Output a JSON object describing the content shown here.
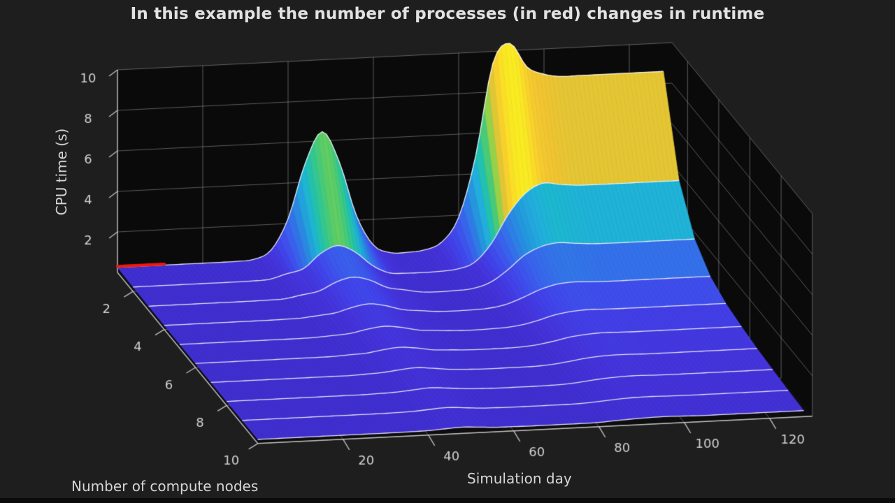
{
  "title": "In this example the number of processes (in red) changes in runtime",
  "colors": {
    "background": "#1e1e1e",
    "wall": "#0a0a0a",
    "floor": "#0d0d0d",
    "grid": "rgba(172,172,172,0.5)",
    "axis_line": "rgba(205,205,205,0.9)",
    "tick_text": "#d2d2d2",
    "surface_edge": "rgba(255,255,255,0.85)",
    "process_marker": "#ed1a0e"
  },
  "chart_data": {
    "type": "surface3d",
    "title": "In this example the number of processes (in red) changes in runtime",
    "x": {
      "label": "Simulation day",
      "ticks": [
        20,
        40,
        60,
        80,
        100,
        120
      ],
      "range": [
        0,
        130
      ]
    },
    "y": {
      "label": "Number of compute nodes",
      "ticks": [
        2,
        4,
        6,
        8,
        10
      ],
      "range": [
        1,
        10
      ]
    },
    "z": {
      "label": "CPU time (s)",
      "ticks": [
        2,
        4,
        6,
        8,
        10
      ],
      "range": [
        0,
        10
      ]
    },
    "day_start": 0,
    "day_step": 4,
    "color_max": 10.5,
    "colormap": [
      {
        "t": 0.0,
        "color": "#3d2cc9"
      },
      {
        "t": 0.05,
        "color": "#4433da"
      },
      {
        "t": 0.1,
        "color": "#4143ea"
      },
      {
        "t": 0.17,
        "color": "#3a60ec"
      },
      {
        "t": 0.24,
        "color": "#2f7ce6"
      },
      {
        "t": 0.31,
        "color": "#2497dc"
      },
      {
        "t": 0.38,
        "color": "#22aedd"
      },
      {
        "t": 0.42,
        "color": "#1cb8cd"
      },
      {
        "t": 0.48,
        "color": "#23c2a8"
      },
      {
        "t": 0.55,
        "color": "#3bc983"
      },
      {
        "t": 0.62,
        "color": "#64cd60"
      },
      {
        "t": 0.7,
        "color": "#9bd148"
      },
      {
        "t": 0.78,
        "color": "#cfc93b"
      },
      {
        "t": 0.84,
        "color": "#f0c331"
      },
      {
        "t": 0.92,
        "color": "#fbd62b"
      },
      {
        "t": 1.0,
        "color": "#f8ef20"
      }
    ],
    "process_marker": {
      "label": "number of processes",
      "color": "#ed1a0e",
      "node": 1,
      "day_start": 0,
      "day_end": 11
    },
    "series": [
      {
        "node": 1,
        "values": [
          0.25,
          0.25,
          0.25,
          0.25,
          0.25,
          0.25,
          0.25,
          0.26,
          0.32,
          0.73,
          2.24,
          4.92,
          6.45,
          4.92,
          2.24,
          0.73,
          0.32,
          0.29,
          0.37,
          0.71,
          1.9,
          4.9,
          9.4,
          10.35,
          9.15,
          8.75,
          8.6,
          8.6,
          8.6,
          8.6,
          8.6,
          8.6,
          8.6
        ]
      },
      {
        "node": 2,
        "values": [
          0.22,
          0.22,
          0.22,
          0.22,
          0.22,
          0.22,
          0.22,
          0.23,
          0.27,
          0.5,
          0.72,
          1.42,
          1.77,
          1.42,
          0.72,
          0.3,
          0.24,
          0.23,
          0.25,
          0.32,
          0.6,
          1.5,
          2.9,
          3.9,
          4.35,
          4.25,
          4.17,
          4.15,
          4.15,
          4.15,
          4.15,
          4.15,
          4.15
        ]
      },
      {
        "node": 3,
        "values": [
          0.21,
          0.21,
          0.21,
          0.21,
          0.21,
          0.21,
          0.21,
          0.22,
          0.25,
          0.4,
          0.55,
          0.95,
          1.15,
          0.95,
          0.55,
          0.4,
          0.25,
          0.22,
          0.24,
          0.3,
          0.55,
          1.1,
          1.8,
          2.2,
          2.35,
          2.28,
          2.22,
          2.2,
          2.2,
          2.2,
          2.2,
          2.2,
          2.2
        ]
      },
      {
        "node": 4,
        "values": [
          0.2,
          0.2,
          0.2,
          0.2,
          0.2,
          0.2,
          0.2,
          0.21,
          0.23,
          0.31,
          0.4,
          0.63,
          0.77,
          0.63,
          0.4,
          0.31,
          0.23,
          0.21,
          0.22,
          0.26,
          0.4,
          0.7,
          1.05,
          1.28,
          1.35,
          1.32,
          1.3,
          1.3,
          1.3,
          1.3,
          1.3,
          1.3,
          1.3
        ]
      },
      {
        "node": 5,
        "values": [
          0.2,
          0.2,
          0.2,
          0.2,
          0.2,
          0.2,
          0.2,
          0.2,
          0.22,
          0.27,
          0.33,
          0.5,
          0.6,
          0.5,
          0.33,
          0.27,
          0.22,
          0.2,
          0.21,
          0.24,
          0.33,
          0.52,
          0.75,
          0.88,
          0.93,
          0.91,
          0.9,
          0.9,
          0.9,
          0.9,
          0.9,
          0.9,
          0.9
        ]
      },
      {
        "node": 6,
        "values": [
          0.2,
          0.2,
          0.2,
          0.2,
          0.2,
          0.2,
          0.2,
          0.2,
          0.21,
          0.25,
          0.29,
          0.42,
          0.5,
          0.42,
          0.29,
          0.25,
          0.21,
          0.2,
          0.2,
          0.22,
          0.29,
          0.43,
          0.6,
          0.69,
          0.73,
          0.71,
          0.7,
          0.7,
          0.7,
          0.7,
          0.7,
          0.7,
          0.7
        ]
      },
      {
        "node": 7,
        "values": [
          0.2,
          0.2,
          0.2,
          0.2,
          0.2,
          0.2,
          0.2,
          0.2,
          0.2,
          0.23,
          0.27,
          0.36,
          0.43,
          0.36,
          0.27,
          0.23,
          0.2,
          0.2,
          0.2,
          0.21,
          0.26,
          0.37,
          0.49,
          0.56,
          0.58,
          0.56,
          0.55,
          0.55,
          0.55,
          0.55,
          0.55,
          0.55,
          0.55
        ]
      },
      {
        "node": 8,
        "values": [
          0.2,
          0.2,
          0.2,
          0.2,
          0.2,
          0.2,
          0.2,
          0.2,
          0.2,
          0.22,
          0.25,
          0.32,
          0.38,
          0.32,
          0.25,
          0.22,
          0.2,
          0.2,
          0.2,
          0.21,
          0.24,
          0.32,
          0.41,
          0.46,
          0.48,
          0.46,
          0.45,
          0.45,
          0.45,
          0.45,
          0.45,
          0.45,
          0.45
        ]
      },
      {
        "node": 9,
        "values": [
          0.2,
          0.2,
          0.2,
          0.2,
          0.2,
          0.2,
          0.2,
          0.2,
          0.2,
          0.21,
          0.23,
          0.29,
          0.34,
          0.29,
          0.23,
          0.21,
          0.2,
          0.2,
          0.2,
          0.2,
          0.22,
          0.28,
          0.34,
          0.38,
          0.39,
          0.37,
          0.36,
          0.36,
          0.36,
          0.36,
          0.36,
          0.36,
          0.36
        ]
      },
      {
        "node": 10,
        "values": [
          0.2,
          0.2,
          0.2,
          0.2,
          0.2,
          0.2,
          0.2,
          0.2,
          0.2,
          0.21,
          0.22,
          0.27,
          0.31,
          0.27,
          0.22,
          0.21,
          0.2,
          0.2,
          0.2,
          0.2,
          0.21,
          0.26,
          0.3,
          0.33,
          0.34,
          0.32,
          0.3,
          0.3,
          0.3,
          0.3,
          0.3,
          0.3,
          0.3
        ]
      }
    ]
  }
}
